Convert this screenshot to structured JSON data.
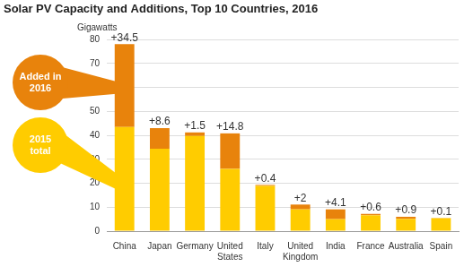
{
  "chart_data": {
    "type": "bar",
    "title": "Solar PV Capacity and Additions, Top 10 Countries, 2016",
    "y_label": "Gigawatts",
    "categories": [
      "China",
      "Japan",
      "Germany",
      "United States",
      "Italy",
      "United Kingdom",
      "India",
      "France",
      "Australia",
      "Spain"
    ],
    "series": [
      {
        "name": "2015 total",
        "color": "#FFCC00",
        "values": [
          43.5,
          34.4,
          39.7,
          26.0,
          18.9,
          9.1,
          5.0,
          6.6,
          5.1,
          5.4
        ]
      },
      {
        "name": "Added in 2016",
        "color": "#E8830C",
        "values": [
          34.5,
          8.6,
          1.5,
          14.8,
          0.4,
          2,
          4.1,
          0.6,
          0.9,
          0.1
        ],
        "value_labels": [
          "+34.5",
          "+8.6",
          "+1.5",
          "+14.8",
          "+0.4",
          "+2",
          "+4.1",
          "+0.6",
          "+0.9",
          "+0.1"
        ]
      }
    ],
    "stacked": true,
    "data_labels": true,
    "legend": "left",
    "ylim": [
      0,
      80
    ],
    "yticks": [
      0,
      10,
      20,
      30,
      40,
      50,
      60,
      70,
      80
    ],
    "grid": true
  }
}
